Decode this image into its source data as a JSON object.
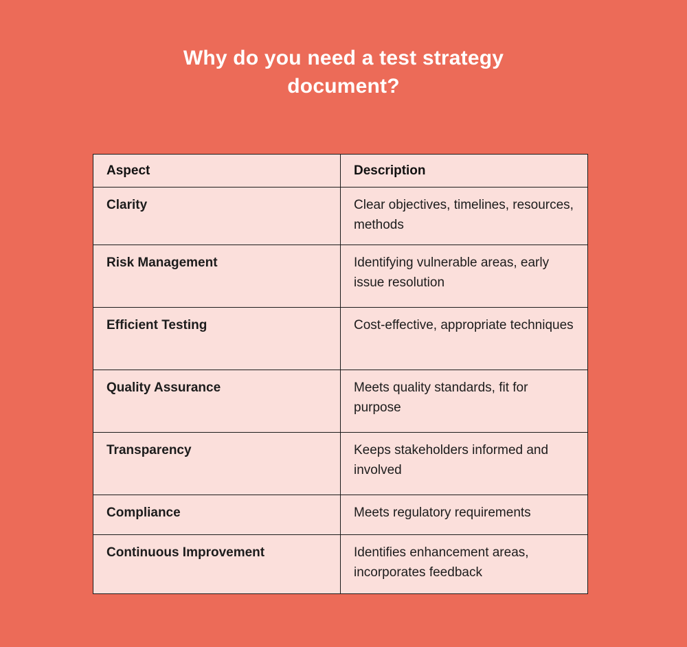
{
  "page": {
    "title": "Why do you need a test strategy document?"
  },
  "colors": {
    "background": "#ec6b58",
    "cell_background": "#fbdfdb",
    "border": "#1a1a1a",
    "title_text": "#ffffff",
    "body_text": "#1c1c1c"
  },
  "chart_data": {
    "type": "table",
    "title": "Why do you need a test strategy document?",
    "columns": [
      "Aspect",
      "Description"
    ],
    "rows": [
      [
        "Clarity",
        "Clear objectives, timelines, resources, methods"
      ],
      [
        "Risk Management",
        "Identifying vulnerable areas, early issue resolution"
      ],
      [
        "Efficient Testing",
        "Cost-effective, appropriate techniques"
      ],
      [
        "Quality Assurance",
        "Meets quality standards, fit for purpose"
      ],
      [
        "Transparency",
        "Keeps stakeholders informed and involved"
      ],
      [
        "Compliance",
        "Meets regulatory requirements"
      ],
      [
        "Continuous Improvement",
        "Identifies enhancement areas, incorporates feedback"
      ]
    ]
  }
}
